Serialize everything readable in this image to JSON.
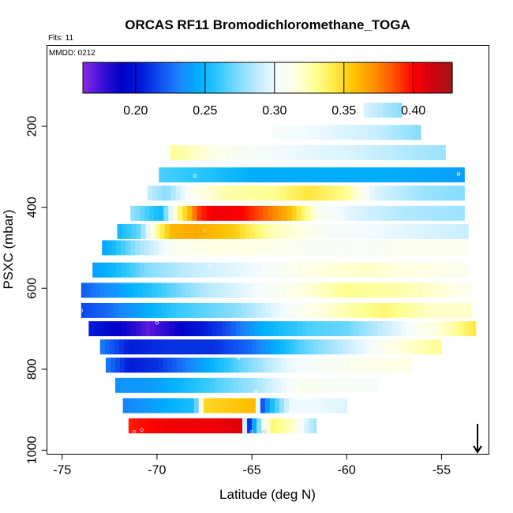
{
  "chart_data": {
    "type": "heatmap",
    "title": "ORCAS RF11 Bromodichloromethane_TOGA",
    "flights_label": "Flts: 11",
    "date_label": "MMDD: 0212",
    "xlabel": "Latitude (deg N)",
    "ylabel": "PSXC (mbar)",
    "xlim": [
      -75.8,
      -52.5
    ],
    "ylim": [
      1010,
      0
    ],
    "xticks": [
      -75,
      -70,
      -65,
      -60,
      -55
    ],
    "yticks": [
      200,
      400,
      600,
      800,
      1000
    ],
    "colorbar": {
      "range": [
        0.162,
        0.428
      ],
      "ticks": [
        0.2,
        0.25,
        0.3,
        0.35,
        0.4
      ],
      "tick_labels": [
        "0.20",
        "0.25",
        "0.30",
        "0.35",
        "0.40"
      ],
      "colors": [
        "#8a2be2",
        "#3a10d8",
        "#0000c8",
        "#0018d8",
        "#1050f0",
        "#1888ff",
        "#00b0ff",
        "#30c8ff",
        "#80dcff",
        "#c0ecff",
        "#f4fcff",
        "#ffffe0",
        "#ffff90",
        "#ffe840",
        "#ffc000",
        "#ff9000",
        "#ff5000",
        "#ff0000",
        "#d00010",
        "#a01818"
      ]
    },
    "bands": [
      {
        "p": 160,
        "x0": -59.1,
        "x1": -57.1,
        "pts": [
          [
            -59.1,
            0.295
          ],
          [
            -57.1,
            0.275
          ]
        ]
      },
      {
        "p": 215,
        "x0": -63.9,
        "x1": -56.1,
        "pts": [
          [
            -63.9,
            0.305
          ],
          [
            -61.5,
            0.3
          ],
          [
            -58.5,
            0.29
          ],
          [
            -56.1,
            0.275
          ]
        ]
      },
      {
        "p": 265,
        "x0": -69.3,
        "x1": -54.8,
        "pts": [
          [
            -69.3,
            0.33
          ],
          [
            -66.5,
            0.31
          ],
          [
            -63.0,
            0.3
          ],
          [
            -60.0,
            0.295
          ],
          [
            -57.0,
            0.285
          ],
          [
            -54.8,
            0.28
          ]
        ]
      },
      {
        "p": 320,
        "x0": -69.9,
        "x1": -53.8,
        "pts": [
          [
            -69.9,
            0.265
          ],
          [
            -68.5,
            0.26
          ],
          [
            -67.0,
            0.255
          ],
          [
            -65.0,
            0.245
          ],
          [
            -62.0,
            0.245
          ],
          [
            -58.0,
            0.245
          ],
          [
            -53.8,
            0.24
          ]
        ]
      },
      {
        "p": 365,
        "x0": -70.5,
        "x1": -53.8,
        "pts": [
          [
            -70.5,
            0.29
          ],
          [
            -69.5,
            0.275
          ],
          [
            -68.2,
            0.31
          ],
          [
            -66.5,
            0.325
          ],
          [
            -63.8,
            0.33
          ],
          [
            -62.0,
            0.345
          ],
          [
            -60.0,
            0.33
          ],
          [
            -58.5,
            0.295
          ],
          [
            -56.0,
            0.28
          ],
          [
            -53.8,
            0.275
          ]
        ]
      },
      {
        "p": 415,
        "x0": -71.4,
        "x1": -53.8,
        "pts": [
          [
            -71.4,
            0.28
          ],
          [
            -70.6,
            0.265
          ],
          [
            -69.8,
            0.25
          ],
          [
            -68.9,
            0.33
          ],
          [
            -68.3,
            0.36
          ],
          [
            -67.8,
            0.39
          ],
          [
            -67.0,
            0.405
          ],
          [
            -65.5,
            0.4
          ],
          [
            -64.5,
            0.385
          ],
          [
            -63.0,
            0.36
          ],
          [
            -61.5,
            0.31
          ],
          [
            -59.5,
            0.295
          ],
          [
            -57.0,
            0.285
          ],
          [
            -53.8,
            0.28
          ]
        ]
      },
      {
        "p": 460,
        "x0": -72.1,
        "x1": -53.6,
        "pts": [
          [
            -72.1,
            0.25
          ],
          [
            -70.9,
            0.27
          ],
          [
            -70.0,
            0.33
          ],
          [
            -69.3,
            0.36
          ],
          [
            -68.0,
            0.365
          ],
          [
            -66.0,
            0.355
          ],
          [
            -64.0,
            0.325
          ],
          [
            -61.0,
            0.305
          ],
          [
            -58.0,
            0.3
          ],
          [
            -53.6,
            0.29
          ]
        ]
      },
      {
        "p": 500,
        "x0": -72.9,
        "x1": -53.6,
        "pts": [
          [
            -72.9,
            0.24
          ],
          [
            -71.0,
            0.28
          ],
          [
            -69.0,
            0.31
          ],
          [
            -66.0,
            0.315
          ],
          [
            -63.0,
            0.31
          ],
          [
            -60.0,
            0.305
          ],
          [
            -57.0,
            0.31
          ],
          [
            -53.6,
            0.31
          ]
        ]
      },
      {
        "p": 555,
        "x0": -73.4,
        "x1": -53.6,
        "pts": [
          [
            -73.4,
            0.24
          ],
          [
            -72.3,
            0.25
          ],
          [
            -70.5,
            0.275
          ],
          [
            -68.0,
            0.29
          ],
          [
            -65.0,
            0.3
          ],
          [
            -62.0,
            0.315
          ],
          [
            -59.0,
            0.32
          ],
          [
            -56.5,
            0.315
          ],
          [
            -53.6,
            0.31
          ]
        ]
      },
      {
        "p": 605,
        "x0": -74.0,
        "x1": -53.4,
        "pts": [
          [
            -74.0,
            0.22
          ],
          [
            -73.0,
            0.23
          ],
          [
            -71.5,
            0.245
          ],
          [
            -69.5,
            0.265
          ],
          [
            -67.5,
            0.285
          ],
          [
            -65.0,
            0.3
          ],
          [
            -62.5,
            0.315
          ],
          [
            -60.0,
            0.33
          ],
          [
            -57.0,
            0.325
          ],
          [
            -54.5,
            0.315
          ],
          [
            -53.4,
            0.31
          ]
        ]
      },
      {
        "p": 655,
        "x0": -74.0,
        "x1": -53.4,
        "pts": [
          [
            -74.0,
            0.215
          ],
          [
            -72.5,
            0.225
          ],
          [
            -71.0,
            0.24
          ],
          [
            -69.0,
            0.26
          ],
          [
            -66.0,
            0.275
          ],
          [
            -63.0,
            0.305
          ],
          [
            -60.0,
            0.325
          ],
          [
            -58.0,
            0.335
          ],
          [
            -55.5,
            0.32
          ],
          [
            -53.4,
            0.32
          ]
        ]
      },
      {
        "p": 700,
        "x0": -73.6,
        "x1": -53.2,
        "pts": [
          [
            -73.6,
            0.205
          ],
          [
            -71.5,
            0.185
          ],
          [
            -70.5,
            0.17
          ],
          [
            -69.5,
            0.18
          ],
          [
            -68.0,
            0.2
          ],
          [
            -66.5,
            0.215
          ],
          [
            -64.5,
            0.245
          ],
          [
            -62.0,
            0.265
          ],
          [
            -60.0,
            0.27
          ],
          [
            -57.0,
            0.3
          ],
          [
            -54.5,
            0.325
          ],
          [
            -53.2,
            0.345
          ]
        ]
      },
      {
        "p": 745,
        "x0": -73.0,
        "x1": -55.0,
        "pts": [
          [
            -73.0,
            0.23
          ],
          [
            -71.5,
            0.205
          ],
          [
            -69.5,
            0.21
          ],
          [
            -67.0,
            0.21
          ],
          [
            -65.0,
            0.225
          ],
          [
            -62.5,
            0.265
          ],
          [
            -60.0,
            0.29
          ],
          [
            -57.5,
            0.315
          ],
          [
            -55.0,
            0.33
          ]
        ]
      },
      {
        "p": 790,
        "x0": -72.7,
        "x1": -56.6,
        "pts": [
          [
            -72.7,
            0.23
          ],
          [
            -71.5,
            0.205
          ],
          [
            -70.0,
            0.21
          ],
          [
            -68.0,
            0.235
          ],
          [
            -65.5,
            0.27
          ],
          [
            -63.0,
            0.3
          ],
          [
            -60.0,
            0.31
          ],
          [
            -56.6,
            0.315
          ]
        ]
      },
      {
        "p": 840,
        "x0": -72.2,
        "x1": -58.3,
        "pts": [
          [
            -72.2,
            0.235
          ],
          [
            -70.0,
            0.24
          ],
          [
            -67.5,
            0.26
          ],
          [
            -65.0,
            0.28
          ],
          [
            -62.5,
            0.31
          ],
          [
            -60.0,
            0.305
          ],
          [
            -58.3,
            0.305
          ]
        ]
      },
      {
        "p": 890,
        "x0": -71.8,
        "x1": -60.0,
        "pts": [
          [
            -71.8,
            0.23
          ],
          [
            -69.5,
            0.245
          ],
          [
            -68.0,
            0.255
          ],
          [
            -67.5,
            0.35
          ],
          [
            -66.0,
            0.355
          ],
          [
            -64.8,
            0.36
          ],
          [
            -64.5,
            0.215
          ],
          [
            -64.0,
            0.25
          ],
          [
            -63.0,
            0.3
          ],
          [
            -61.5,
            0.3
          ],
          [
            -60.0,
            0.295
          ]
        ]
      },
      {
        "p": 940,
        "x0": -71.5,
        "x1": -61.6,
        "pts": [
          [
            -71.5,
            0.395
          ],
          [
            -69.0,
            0.405
          ],
          [
            -67.0,
            0.405
          ],
          [
            -65.6,
            0.41
          ],
          [
            -65.2,
            0.2
          ],
          [
            -64.8,
            0.255
          ],
          [
            -64.4,
            0.3
          ],
          [
            -63.9,
            0.335
          ],
          [
            -62.8,
            0.32
          ],
          [
            -62.0,
            0.29
          ],
          [
            -61.6,
            0.28
          ]
        ]
      }
    ],
    "markers": [
      {
        "x": -70.8,
        "p": 950,
        "color": "#c3c3ff"
      },
      {
        "x": -71.2,
        "p": 955,
        "color": "#c3c3ff"
      },
      {
        "x": -65.0,
        "p": 955,
        "color": "#c3c3ff"
      },
      {
        "x": -64.5,
        "p": 955,
        "color": "#c3c3ff"
      },
      {
        "x": -64.3,
        "p": 955,
        "color": "#c3c3ff"
      },
      {
        "x": -70.0,
        "p": 685,
        "color": "#f0d8ff"
      },
      {
        "x": -74.0,
        "p": 655,
        "color": "#d8eaff"
      },
      {
        "x": -65.7,
        "p": 772,
        "color": "#ffffff"
      },
      {
        "x": -67.5,
        "p": 455,
        "color": "#ffe0b0"
      },
      {
        "x": -68.0,
        "p": 322,
        "color": "#ffffff"
      },
      {
        "x": -60.0,
        "p": 268,
        "color": "#f5f5f5"
      },
      {
        "x": -54.1,
        "p": 318,
        "color": "#ffffff"
      },
      {
        "x": -67.2,
        "p": 545,
        "color": "#ffffff"
      },
      {
        "x": -64.8,
        "p": 855,
        "color": "#ffffff"
      },
      {
        "x": -52.9,
        "p": 690,
        "color": "#ffffff"
      }
    ],
    "direction_arrow": {
      "x": -53.1,
      "p_from": 935,
      "p_to": 1005
    }
  }
}
